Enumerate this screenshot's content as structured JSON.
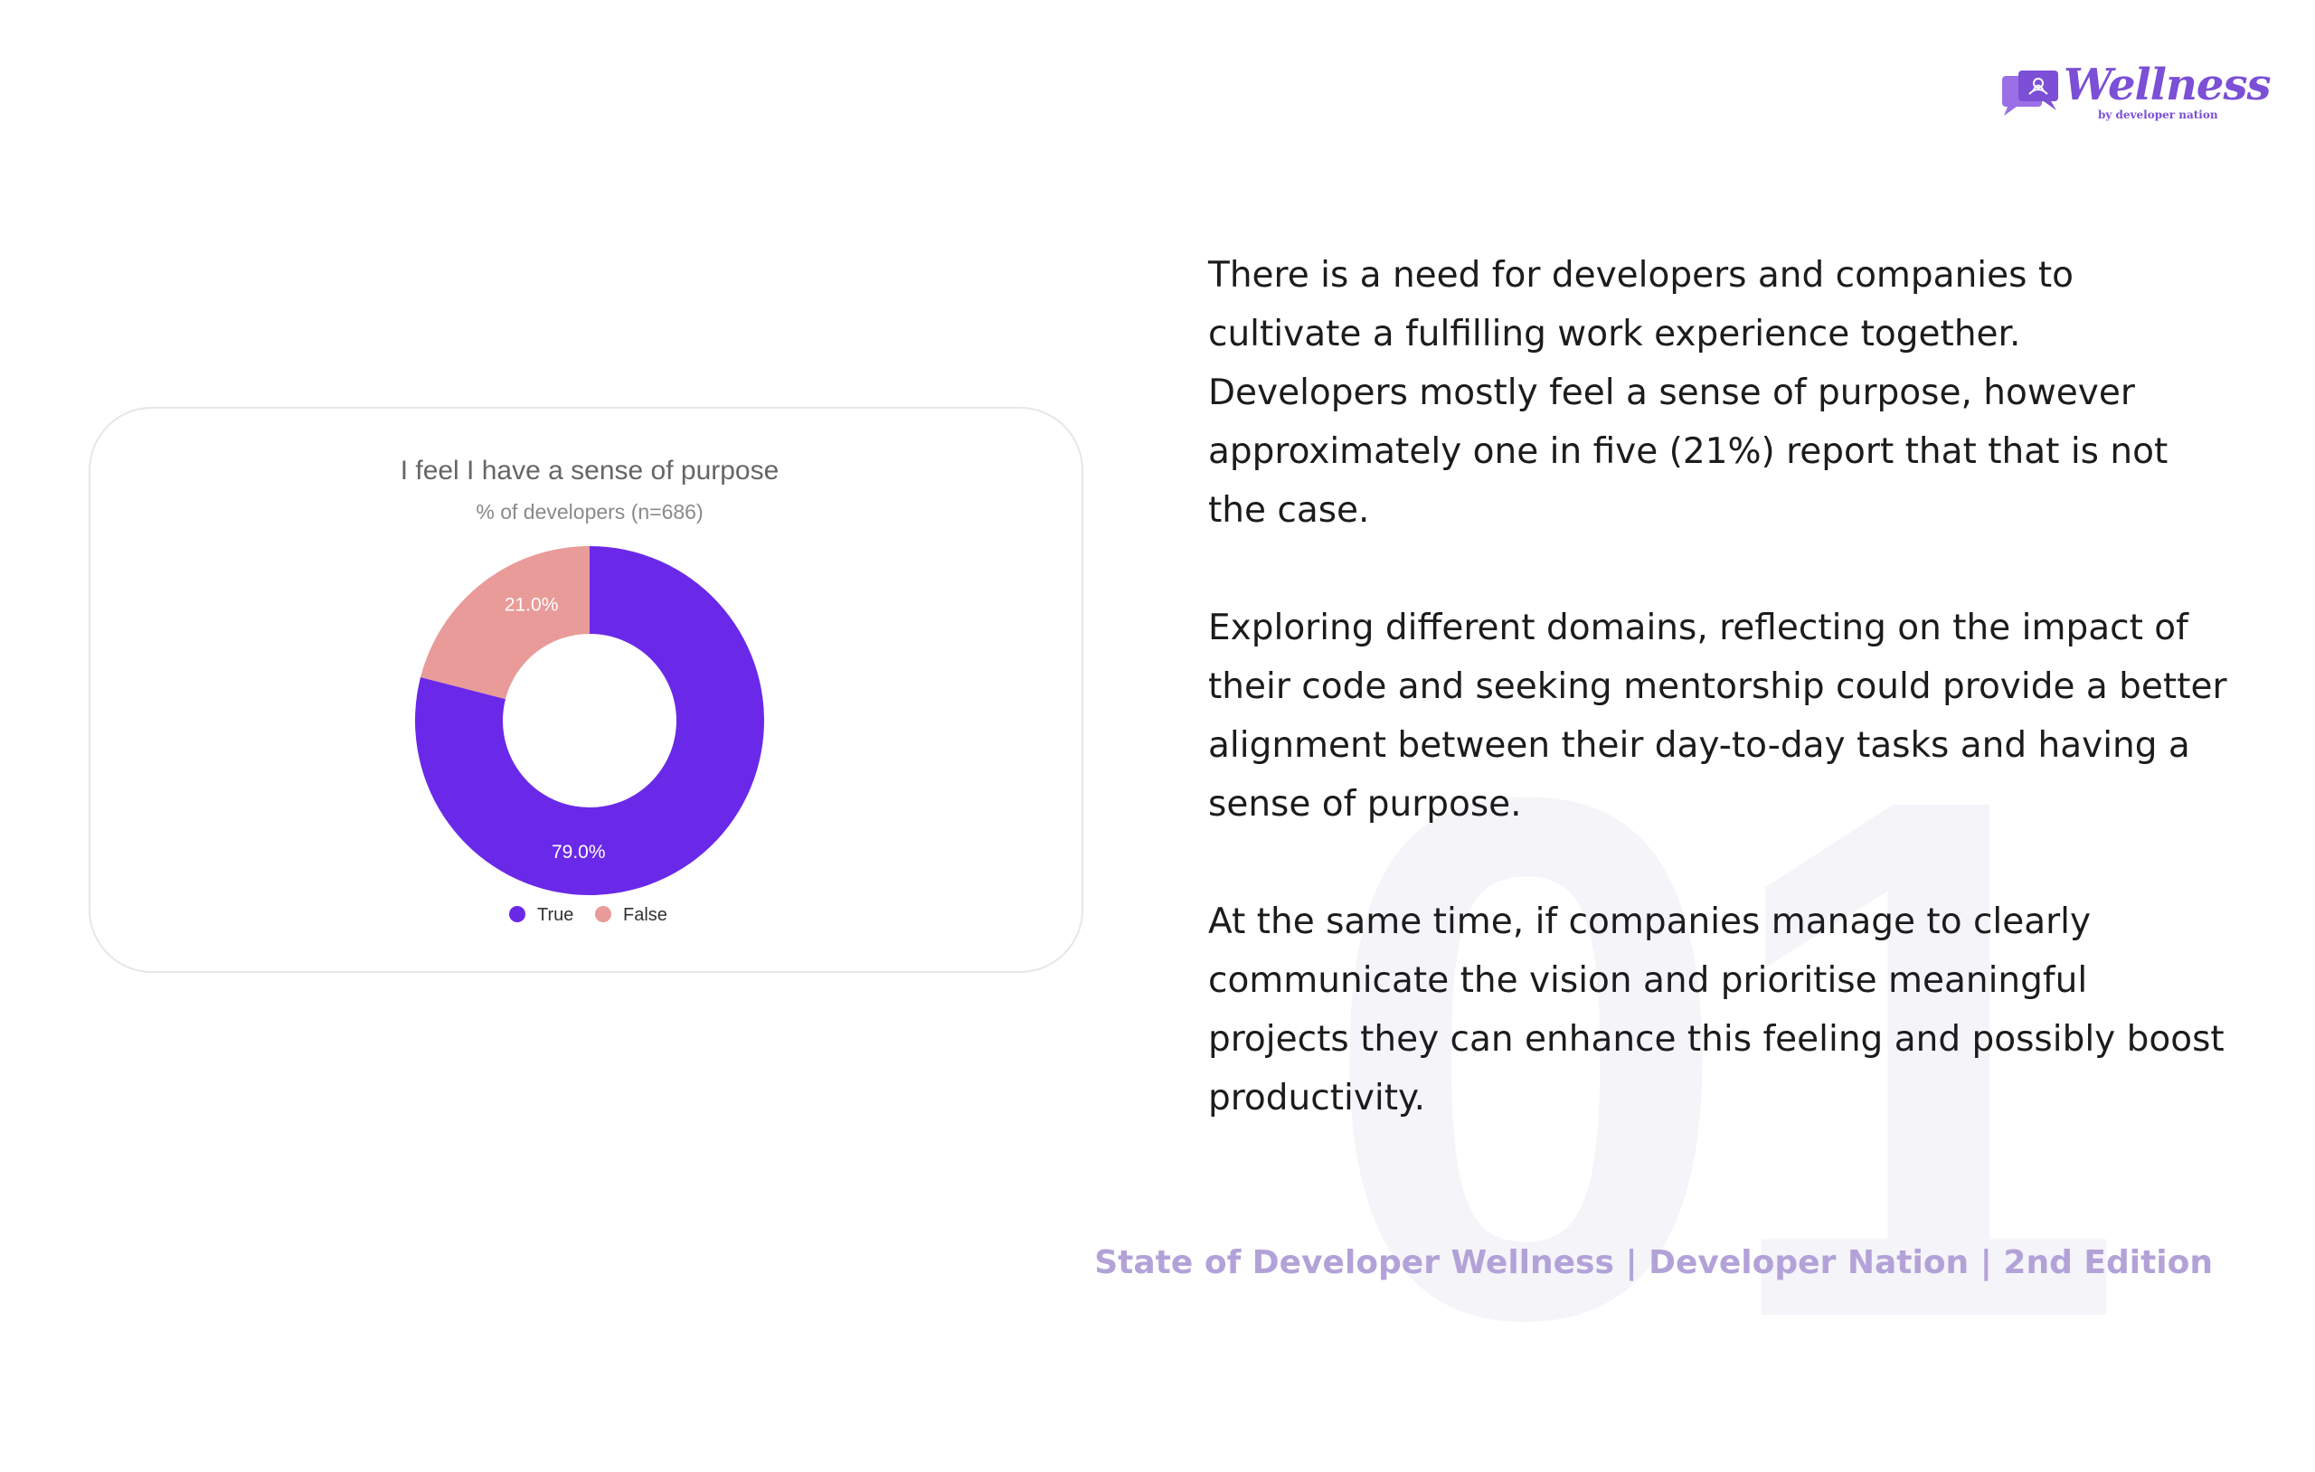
{
  "watermark": {
    "text": "01"
  },
  "logo": {
    "word": "Wellness",
    "subtitle": "by developer nation"
  },
  "body": {
    "paragraphs": [
      "There is a need for developers and companies to cultivate a fulfilling work experience together. Developers mostly feel a sense of purpose, however approximately one in five (21%) report that that is not the case.",
      "Exploring different domains, reflecting on the impact of their code and seeking mentorship could provide a better alignment between their day-to-day tasks and having a sense of purpose.",
      "At the same time, if companies manage to clearly communicate the vision and prioritise meaningful projects they can enhance this feeling and possibly boost productivity."
    ]
  },
  "footer": {
    "text": "State of Developer Wellness | Developer Nation | 2nd Edition"
  },
  "colors": {
    "true": "#6a29e8",
    "false": "#e89b98",
    "brand": "#7b4fd6",
    "footer": "#b3a2d8"
  },
  "chart_data": {
    "type": "pie",
    "donut": true,
    "title": "I feel I have a sense of purpose",
    "subtitle": "% of developers (n=686)",
    "categories": [
      "True",
      "False"
    ],
    "values": [
      79.0,
      21.0
    ],
    "labels": [
      "79.0%",
      "21.0%"
    ],
    "colors": [
      "#6a29e8",
      "#e89b98"
    ],
    "legend": "bottom"
  }
}
